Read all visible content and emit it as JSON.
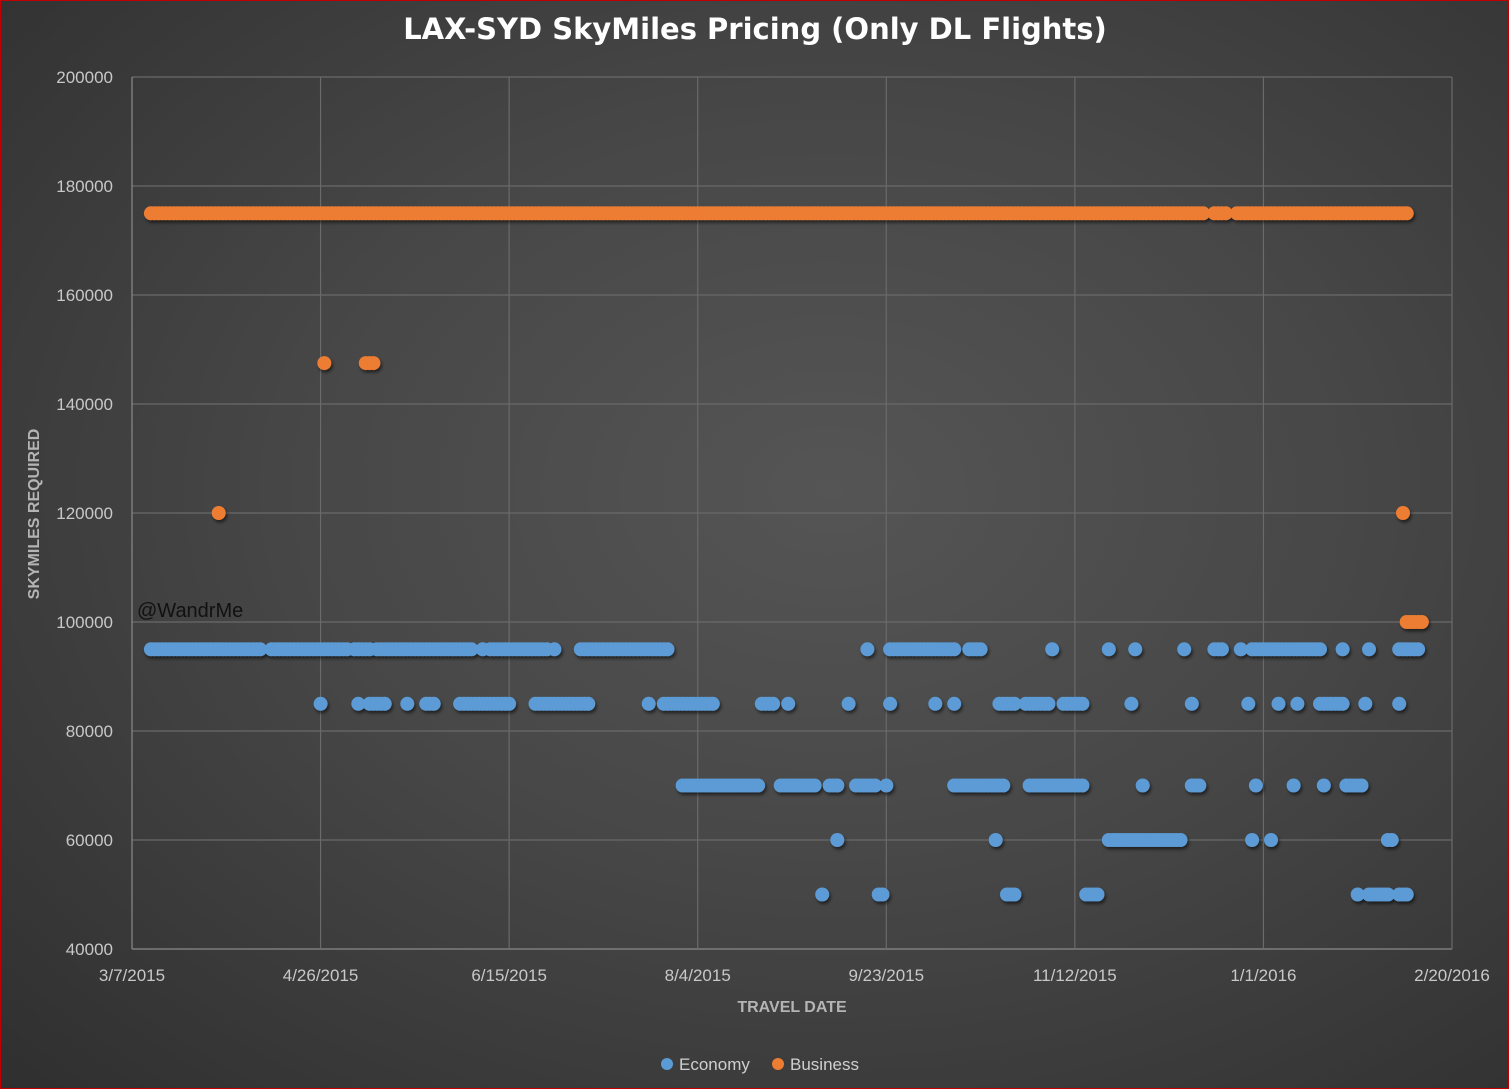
{
  "chart_data": {
    "type": "scatter",
    "title": "LAX-SYD SkyMiles Pricing (Only DL Flights)",
    "xlabel": "TRAVEL DATE",
    "ylabel": "SKYMILES REQUIRED",
    "annotation": "@WandrMe",
    "x_origin_date": "3/7/2015",
    "x_unit": "days since 3/7/2015",
    "xlim": [
      0,
      350
    ],
    "ylim": [
      40000,
      200000
    ],
    "x_ticks": [
      {
        "day": 0,
        "label": "3/7/2015"
      },
      {
        "day": 50,
        "label": "4/26/2015"
      },
      {
        "day": 100,
        "label": "6/15/2015"
      },
      {
        "day": 150,
        "label": "8/4/2015"
      },
      {
        "day": 200,
        "label": "9/23/2015"
      },
      {
        "day": 250,
        "label": "11/12/2015"
      },
      {
        "day": 300,
        "label": "1/1/2016"
      },
      {
        "day": 350,
        "label": "2/20/2016"
      }
    ],
    "y_ticks": [
      {
        "value": 40000,
        "label": "40000"
      },
      {
        "value": 60000,
        "label": "60000"
      },
      {
        "value": 80000,
        "label": "80000"
      },
      {
        "value": 100000,
        "label": "100000"
      },
      {
        "value": 120000,
        "label": "120000"
      },
      {
        "value": 140000,
        "label": "140000"
      },
      {
        "value": 160000,
        "label": "160000"
      },
      {
        "value": 180000,
        "label": "180000"
      },
      {
        "value": 200000,
        "label": "200000"
      }
    ],
    "grid": true,
    "legend_position": "bottom",
    "series": [
      {
        "name": "Economy",
        "color": "#5b9bd5",
        "runs": [
          {
            "y": 95000,
            "days": [
              [
                5,
                34
              ],
              [
                37,
                45
              ],
              [
                46,
                57
              ],
              [
                59,
                63
              ],
              [
                65,
                87
              ],
              [
                88,
                90
              ],
              [
                93
              ],
              [
                95,
                110
              ],
              [
                112
              ],
              [
                119,
                142
              ],
              [
                195
              ],
              [
                201,
                218
              ],
              [
                222,
                225
              ],
              [
                244
              ],
              [
                259
              ],
              [
                266
              ],
              [
                279
              ],
              [
                287,
                289
              ],
              [
                294
              ],
              [
                297,
                315
              ],
              [
                321
              ],
              [
                328
              ],
              [
                336,
                341
              ]
            ]
          },
          {
            "y": 85000,
            "days": [
              [
                50
              ],
              [
                60
              ],
              [
                63,
                67
              ],
              [
                73
              ],
              [
                78,
                80
              ],
              [
                87,
                100
              ],
              [
                107,
                121
              ],
              [
                137
              ],
              [
                141,
                154
              ],
              [
                167,
                170
              ],
              [
                174
              ],
              [
                190
              ],
              [
                201
              ],
              [
                213
              ],
              [
                218
              ],
              [
                230,
                234
              ],
              [
                237,
                243
              ],
              [
                247,
                252
              ],
              [
                265
              ],
              [
                281
              ],
              [
                296
              ],
              [
                304
              ],
              [
                309
              ],
              [
                315,
                321
              ],
              [
                327
              ],
              [
                336
              ]
            ]
          },
          {
            "y": 70000,
            "days": [
              [
                146,
                166
              ],
              [
                172,
                181
              ],
              [
                185,
                187
              ],
              [
                192,
                197
              ],
              [
                200
              ],
              [
                218,
                231
              ],
              [
                238,
                252
              ],
              [
                268
              ],
              [
                281,
                283
              ],
              [
                298
              ],
              [
                308
              ],
              [
                316
              ],
              [
                322,
                326
              ]
            ]
          },
          {
            "y": 60000,
            "days": [
              [
                187
              ],
              [
                229
              ],
              [
                259,
                278
              ],
              [
                297
              ],
              [
                302
              ],
              [
                333,
                334
              ]
            ]
          },
          {
            "y": 50000,
            "days": [
              [
                183
              ],
              [
                198,
                199
              ],
              [
                232,
                234
              ],
              [
                253,
                256
              ],
              [
                325
              ],
              [
                328,
                333
              ],
              [
                336,
                338
              ]
            ]
          }
        ]
      },
      {
        "name": "Business",
        "color": "#ed7d31",
        "runs": [
          {
            "y": 175000,
            "days": [
              [
                5,
                284
              ],
              [
                287,
                290
              ],
              [
                293,
                338
              ]
            ]
          },
          {
            "y": 147500,
            "days": [
              [
                51
              ],
              [
                62,
                64
              ]
            ]
          },
          {
            "y": 120000,
            "days": [
              [
                23
              ],
              [
                337
              ]
            ]
          },
          {
            "y": 100000,
            "days": [
              [
                338,
                342
              ]
            ]
          }
        ]
      }
    ]
  }
}
